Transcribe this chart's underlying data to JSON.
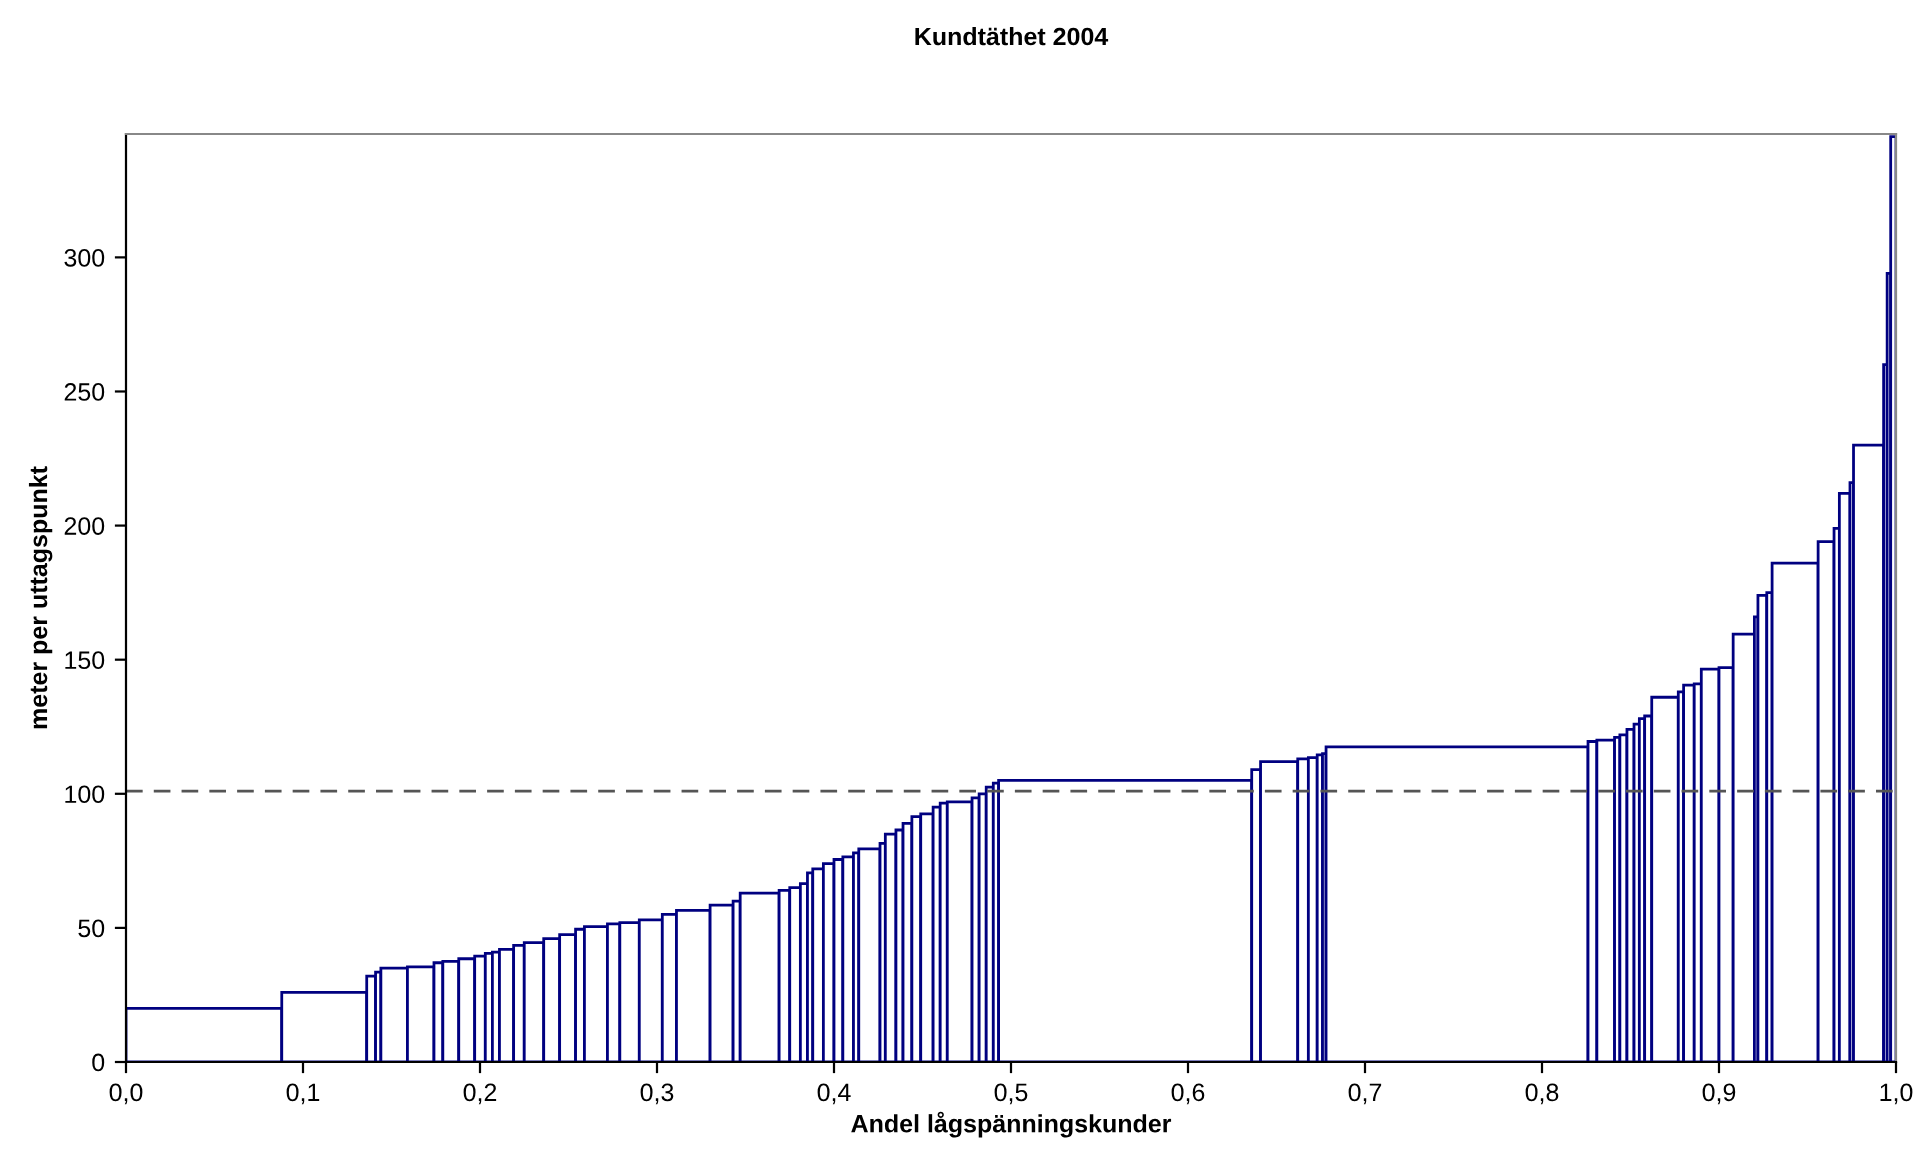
{
  "chart_data": {
    "type": "histogram",
    "title": "Kundtäthet 2004",
    "xlabel": "Andel lågspänningskunder",
    "ylabel": "meter per uttagspunkt",
    "bins": [
      0,
      0.088,
      0.136,
      0.141,
      0.144,
      0.159,
      0.174,
      0.179,
      0.188,
      0.197,
      0.203,
      0.207,
      0.211,
      0.219,
      0.225,
      0.236,
      0.245,
      0.254,
      0.259,
      0.272,
      0.279,
      0.29,
      0.303,
      0.311,
      0.33,
      0.343,
      0.347,
      0.369,
      0.375,
      0.381,
      0.385,
      0.388,
      0.394,
      0.4,
      0.405,
      0.411,
      0.414,
      0.426,
      0.429,
      0.435,
      0.439,
      0.444,
      0.449,
      0.456,
      0.46,
      0.464,
      0.478,
      0.482,
      0.486,
      0.49,
      0.493,
      0.636,
      0.641,
      0.662,
      0.668,
      0.673,
      0.676,
      0.678,
      0.826,
      0.831,
      0.841,
      0.844,
      0.848,
      0.852,
      0.855,
      0.858,
      0.862,
      0.877,
      0.88,
      0.886,
      0.89,
      0.9,
      0.908,
      0.92,
      0.922,
      0.927,
      0.93,
      0.956,
      0.965,
      0.968,
      0.974,
      0.976,
      0.993,
      0.995,
      0.997,
      1.0
    ],
    "values": [
      20,
      26,
      32,
      33.5,
      35,
      35.5,
      37,
      37.5,
      38.5,
      39.5,
      40.5,
      41,
      42,
      43.5,
      44.5,
      46,
      47.5,
      49.5,
      50.5,
      51.5,
      52,
      53,
      55,
      56.5,
      58.5,
      60,
      63,
      64,
      65,
      66.5,
      70.5,
      72,
      74,
      75.5,
      76.5,
      78,
      79.5,
      81.5,
      85,
      86.5,
      89,
      91.5,
      92.5,
      95,
      96.5,
      97,
      98.5,
      100,
      102.5,
      104,
      105,
      109,
      112,
      113,
      113.5,
      114.5,
      115,
      117.5,
      119.5,
      120,
      121,
      122,
      124,
      126,
      128,
      129,
      136,
      138,
      140.5,
      141,
      146.5,
      147,
      159.5,
      166,
      174,
      175,
      186,
      194,
      199,
      212,
      216,
      230,
      260,
      294,
      345
    ],
    "color": "#000080",
    "xlim": [
      0,
      1.0
    ],
    "ylim": [
      0,
      346
    ],
    "xticks": [
      {
        "value": 0,
        "label": "0,0"
      },
      {
        "value": 0.1,
        "label": "0,1"
      },
      {
        "value": 0.2,
        "label": "0,2"
      },
      {
        "value": 0.3,
        "label": "0,3"
      },
      {
        "value": 0.4,
        "label": "0,4"
      },
      {
        "value": 0.5,
        "label": "0,5"
      },
      {
        "value": 0.6,
        "label": "0,6"
      },
      {
        "value": 0.7,
        "label": "0,7"
      },
      {
        "value": 0.8,
        "label": "0,8"
      },
      {
        "value": 0.9,
        "label": "0,9"
      },
      {
        "value": 1.0,
        "label": "1,0"
      }
    ],
    "yticks": [
      0,
      50,
      100,
      150,
      200,
      250,
      300
    ],
    "ref_lines": [
      {
        "axis": "y",
        "value": 101,
        "color": "#555555",
        "line_style": "dashed"
      }
    ],
    "grid": false,
    "legend": false
  }
}
